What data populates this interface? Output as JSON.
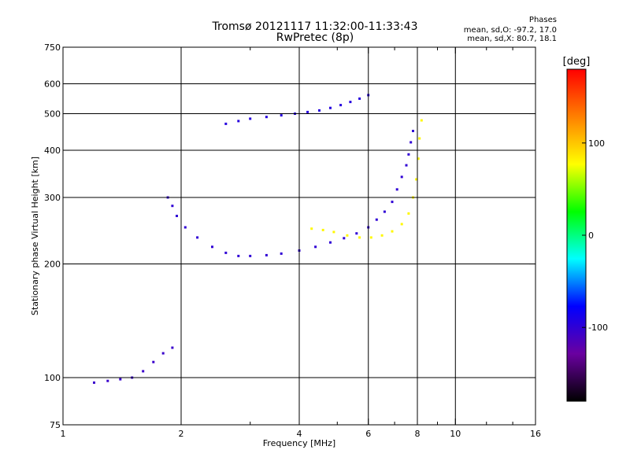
{
  "header": {
    "title_line1": "Tromsø 20121117 11:32:00-11:33:43",
    "title_line2": "RwPretec (8p)",
    "phases_title": "Phases",
    "phases_o": "mean, sd,O: -97.2, 17.0",
    "phases_x": "mean, sd,X:  80.7, 18.1"
  },
  "chart_data": {
    "type": "scatter",
    "title": "Tromsø 20121117 11:32:00-11:33:43",
    "subtitle": "RwPretec (8p)",
    "xlabel": "Frequency [MHz]",
    "ylabel": "Stationary phase Virtual Height [km]",
    "x_scale": "log",
    "y_scale": "log",
    "xlim": [
      1,
      16
    ],
    "ylim": [
      75,
      750
    ],
    "x_ticks": [
      1,
      2,
      4,
      6,
      8,
      10,
      16
    ],
    "y_ticks": [
      75,
      100,
      200,
      300,
      400,
      500,
      600,
      750
    ],
    "grid": true,
    "colorbar": {
      "label": "[deg]",
      "range": [
        -180,
        180
      ],
      "ticks": [
        100,
        0,
        -100
      ],
      "colors": [
        "#000000",
        "#6a00a0",
        "#0000ff",
        "#00ffff",
        "#00ff00",
        "#ffff00",
        "#ff8000",
        "#ff0000"
      ]
    },
    "series": [
      {
        "mode": "O",
        "color_value": -100,
        "x": [
          1.85,
          1.9,
          1.95,
          2.05,
          2.2,
          2.4,
          2.6,
          2.8,
          3.0,
          3.3,
          3.6,
          4.0,
          4.4,
          4.8,
          5.2,
          5.6,
          6.0,
          6.3,
          6.6,
          6.9,
          7.1,
          7.3,
          7.5,
          7.6,
          7.7,
          7.8
        ],
        "y": [
          300,
          285,
          268,
          250,
          235,
          222,
          214,
          210,
          210,
          211,
          213,
          217,
          222,
          228,
          234,
          241,
          250,
          262,
          275,
          292,
          315,
          340,
          365,
          390,
          420,
          450
        ]
      },
      {
        "mode": "O",
        "color_value": -95,
        "x": [
          2.6,
          2.8,
          3.0,
          3.3,
          3.6,
          3.9,
          4.2,
          4.5,
          4.8,
          5.1,
          5.4,
          5.7,
          6.0
        ],
        "y": [
          470,
          478,
          485,
          490,
          495,
          500,
          505,
          510,
          518,
          527,
          537,
          548,
          560
        ]
      },
      {
        "mode": "X",
        "color_value": 80,
        "x": [
          4.3,
          4.6,
          4.9,
          5.3,
          5.7,
          6.1,
          6.5,
          6.9,
          7.3,
          7.6,
          7.8,
          7.95,
          8.05,
          8.1,
          8.2
        ],
        "y": [
          248,
          246,
          243,
          238,
          235,
          235,
          238,
          244,
          255,
          272,
          300,
          335,
          380,
          430,
          480
        ]
      },
      {
        "mode": "O",
        "color_value": -105,
        "x": [
          1.2,
          1.3,
          1.4,
          1.5,
          1.6,
          1.7,
          1.8,
          1.9
        ],
        "y": [
          97,
          98,
          99,
          100,
          104,
          110,
          116,
          120
        ]
      }
    ]
  }
}
